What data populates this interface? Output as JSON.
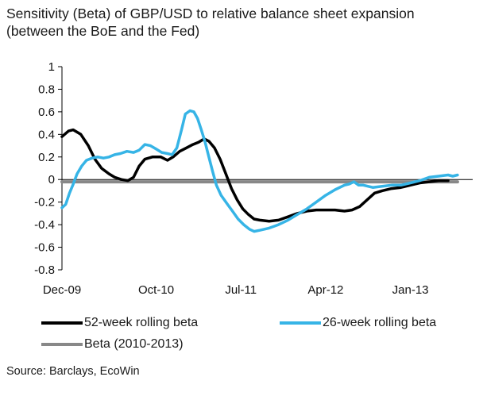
{
  "chart_data": {
    "type": "line",
    "title": "Sensitivity (Beta) of GBP/USD to relative balance sheet expansion",
    "subtitle": "(between the BoE and the Fed)",
    "source": "Source: Barclays, EcoWin",
    "x_ticks": [
      "Dec-09",
      "Oct-10",
      "Jul-11",
      "Apr-12",
      "Jan-13"
    ],
    "y_ticks": [
      "1",
      "0.8",
      "0.6",
      "0.4",
      "0.2",
      "0",
      "-0.2",
      "-0.4",
      "-0.6",
      "-0.8"
    ],
    "ylim": [
      -0.8,
      1
    ],
    "xrange_months": [
      0,
      41
    ],
    "series": [
      {
        "name": "52-week rolling beta",
        "color": "#000000",
        "points": [
          [
            0,
            0.38
          ],
          [
            0.7,
            0.43
          ],
          [
            1.2,
            0.44
          ],
          [
            2,
            0.4
          ],
          [
            2.8,
            0.3
          ],
          [
            3.5,
            0.18
          ],
          [
            4.2,
            0.1
          ],
          [
            5,
            0.05
          ],
          [
            5.6,
            0.02
          ],
          [
            6.3,
            0.0
          ],
          [
            7,
            -0.01
          ],
          [
            7.6,
            0.02
          ],
          [
            8.2,
            0.12
          ],
          [
            8.8,
            0.18
          ],
          [
            9.6,
            0.2
          ],
          [
            10.5,
            0.2
          ],
          [
            11.2,
            0.17
          ],
          [
            11.8,
            0.2
          ],
          [
            12.5,
            0.25
          ],
          [
            13.2,
            0.28
          ],
          [
            13.9,
            0.31
          ],
          [
            14.5,
            0.33
          ],
          [
            15.1,
            0.36
          ],
          [
            15.6,
            0.34
          ],
          [
            16.2,
            0.28
          ],
          [
            16.8,
            0.18
          ],
          [
            17.4,
            0.05
          ],
          [
            18.0,
            -0.08
          ],
          [
            18.6,
            -0.18
          ],
          [
            19.2,
            -0.26
          ],
          [
            19.8,
            -0.31
          ],
          [
            20.4,
            -0.35
          ],
          [
            21,
            -0.36
          ],
          [
            22,
            -0.37
          ],
          [
            23,
            -0.36
          ],
          [
            24,
            -0.33
          ],
          [
            25,
            -0.3
          ],
          [
            26,
            -0.28
          ],
          [
            27,
            -0.27
          ],
          [
            28,
            -0.27
          ],
          [
            29,
            -0.27
          ],
          [
            30,
            -0.28
          ],
          [
            30.8,
            -0.27
          ],
          [
            31.6,
            -0.24
          ],
          [
            32.4,
            -0.18
          ],
          [
            33.2,
            -0.12
          ],
          [
            34,
            -0.1
          ],
          [
            35,
            -0.08
          ],
          [
            36,
            -0.07
          ],
          [
            37,
            -0.05
          ],
          [
            38,
            -0.03
          ],
          [
            39,
            -0.02
          ],
          [
            40,
            -0.01
          ],
          [
            41,
            -0.01
          ]
        ]
      },
      {
        "name": "26-week rolling beta",
        "color": "#36b4e6",
        "points": [
          [
            0,
            -0.25
          ],
          [
            0.4,
            -0.22
          ],
          [
            0.8,
            -0.12
          ],
          [
            1.2,
            -0.04
          ],
          [
            1.6,
            0.05
          ],
          [
            2.1,
            0.12
          ],
          [
            2.6,
            0.17
          ],
          [
            3.2,
            0.19
          ],
          [
            3.8,
            0.2
          ],
          [
            4.4,
            0.19
          ],
          [
            5,
            0.2
          ],
          [
            5.6,
            0.22
          ],
          [
            6.2,
            0.23
          ],
          [
            6.9,
            0.25
          ],
          [
            7.6,
            0.24
          ],
          [
            8.2,
            0.26
          ],
          [
            8.8,
            0.31
          ],
          [
            9.4,
            0.3
          ],
          [
            10,
            0.27
          ],
          [
            10.6,
            0.24
          ],
          [
            11.2,
            0.23
          ],
          [
            11.7,
            0.22
          ],
          [
            12.2,
            0.28
          ],
          [
            12.7,
            0.44
          ],
          [
            13.1,
            0.58
          ],
          [
            13.6,
            0.61
          ],
          [
            14.0,
            0.6
          ],
          [
            14.4,
            0.54
          ],
          [
            14.8,
            0.44
          ],
          [
            15.2,
            0.33
          ],
          [
            15.6,
            0.2
          ],
          [
            16.0,
            0.07
          ],
          [
            16.4,
            -0.05
          ],
          [
            16.9,
            -0.14
          ],
          [
            17.5,
            -0.21
          ],
          [
            18.1,
            -0.28
          ],
          [
            18.7,
            -0.35
          ],
          [
            19.3,
            -0.4
          ],
          [
            19.9,
            -0.44
          ],
          [
            20.4,
            -0.46
          ],
          [
            21,
            -0.45
          ],
          [
            22,
            -0.43
          ],
          [
            23,
            -0.4
          ],
          [
            24,
            -0.36
          ],
          [
            25,
            -0.31
          ],
          [
            26,
            -0.26
          ],
          [
            27,
            -0.2
          ],
          [
            28,
            -0.14
          ],
          [
            29,
            -0.09
          ],
          [
            30,
            -0.05
          ],
          [
            30.5,
            -0.04
          ],
          [
            31,
            -0.02
          ],
          [
            31.5,
            -0.05
          ],
          [
            32,
            -0.05
          ],
          [
            33,
            -0.07
          ],
          [
            34,
            -0.06
          ],
          [
            35,
            -0.05
          ],
          [
            36,
            -0.05
          ],
          [
            37,
            -0.03
          ],
          [
            38,
            -0.01
          ],
          [
            39,
            0.02
          ],
          [
            40,
            0.03
          ],
          [
            41,
            0.04
          ],
          [
            41.5,
            0.03
          ],
          [
            42,
            0.04
          ]
        ]
      },
      {
        "name": "Beta (2010-2013)",
        "color": "#888888",
        "points": [
          [
            0,
            -0.02
          ],
          [
            42,
            -0.02
          ]
        ]
      }
    ],
    "legend": {
      "s1": "52-week rolling beta",
      "s2": "26-week rolling beta",
      "s3": "Beta (2010-2013)",
      "placement": "bottom"
    }
  }
}
